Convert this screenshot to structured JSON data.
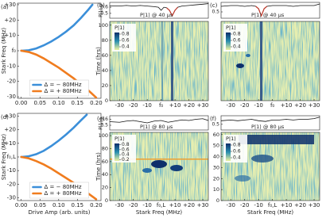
{
  "chart_data": [
    {
      "type": "line",
      "label": "(a)",
      "ylabel": "Stark Freq (MHz)",
      "xlim": [
        -0.01,
        0.213
      ],
      "xticks": [
        {
          "value": 0,
          "label": "0.00"
        },
        {
          "value": 0.05,
          "label": "0.05"
        },
        {
          "value": 0.1,
          "label": "0.10"
        },
        {
          "value": 0.15,
          "label": "0.15"
        },
        {
          "value": 0.2,
          "label": "0.20"
        }
      ],
      "ylim": [
        -31,
        31
      ],
      "yticks": [
        -30,
        -20,
        -10,
        {
          "value": 0,
          "label": "f₀"
        },
        {
          "value": 10,
          "label": "+10"
        },
        {
          "value": 20,
          "label": "+20"
        },
        {
          "value": 30,
          "label": "+30"
        }
      ],
      "legend": "lower center",
      "series": [
        {
          "name": "Δ = − 80MHz",
          "color": "#3b8fd9",
          "x": [
            0,
            0.02,
            0.04,
            0.06,
            0.08,
            0.1,
            0.12,
            0.14,
            0.16,
            0.18,
            0.19
          ],
          "values": [
            0,
            0.3,
            1.5,
            3.5,
            6,
            9,
            12.5,
            16.5,
            21.5,
            27,
            30
          ]
        },
        {
          "name": "Δ = + 80MHz",
          "color": "#f07c1e",
          "x": [
            0,
            0.02,
            0.04,
            0.06,
            0.08,
            0.1,
            0.12,
            0.14,
            0.16,
            0.18,
            0.2
          ],
          "values": [
            0,
            -0.8,
            -2.5,
            -5,
            -8,
            -11,
            -14.5,
            -18,
            -22,
            -26,
            -30.5
          ]
        }
      ]
    },
    {
      "type": "heatmap",
      "label": "(b)",
      "trace": {
        "ylabel": "P|1⟩",
        "annotation": "P|1⟩ @ 40 μs",
        "ylim": [
          0.42,
          0.68
        ],
        "yticks": [
          0.5,
          0.6
        ],
        "x": [
          -37,
          -30,
          -25,
          -20,
          -15,
          -10,
          -5,
          -2,
          0,
          2,
          4,
          6,
          8,
          10,
          12,
          15,
          20,
          25,
          30,
          34
        ],
        "series": [
          {
            "color": "#111111",
            "values": [
              0.62,
              0.62,
              0.63,
              0.62,
              0.63,
              0.62,
              0.61,
              0.6,
              0.55,
              0.6,
              0.59,
              0.55,
              0.46,
              0.55,
              0.6,
              0.62,
              0.63,
              0.64,
              0.65,
              0.66
            ]
          },
          {
            "color": "#c0392b",
            "values": [
              null,
              null,
              null,
              null,
              null,
              null,
              null,
              null,
              null,
              null,
              0.59,
              0.55,
              0.46,
              0.55,
              0.6,
              null,
              null,
              null,
              null,
              null
            ]
          }
        ]
      },
      "xlim": [
        -37,
        34
      ],
      "xticks": [
        -30,
        -20,
        -10,
        {
          "value": 0,
          "label": "f₀"
        },
        {
          "value": 10,
          "label": "+10"
        },
        {
          "value": 20,
          "label": "+20"
        },
        {
          "value": 30,
          "label": "+30"
        }
      ],
      "ylabel": "Time (hrs)",
      "ylim": [
        0,
        105
      ],
      "yticks": [
        0,
        20,
        40,
        60,
        80,
        100
      ],
      "colorbar": {
        "label": "P|1⟩",
        "clim": [
          0.3,
          0.85
        ],
        "ticks": [
          0.4,
          0.6,
          0.8
        ]
      }
    },
    {
      "type": "heatmap",
      "label": "(c)",
      "trace": {
        "annotation": "P|1⟩ @ 40 μs",
        "ylim": [
          0.42,
          0.62
        ],
        "yticks": [
          0.5
        ],
        "x": [
          -37,
          -30,
          -25,
          -20,
          -15,
          -12,
          -10,
          -8,
          -6,
          -4,
          0,
          5,
          10,
          15,
          20,
          25,
          30,
          34
        ],
        "series": [
          {
            "color": "#111111",
            "values": [
              0.57,
              0.58,
              0.58,
              0.57,
              0.58,
              0.57,
              0.54,
              0.45,
              0.54,
              0.57,
              0.58,
              0.58,
              0.58,
              0.57,
              0.58,
              0.58,
              0.58,
              0.6
            ]
          },
          {
            "color": "#c0392b",
            "values": [
              null,
              null,
              null,
              null,
              null,
              0.57,
              0.54,
              0.45,
              0.54,
              0.57,
              null,
              null,
              null,
              null,
              null,
              null,
              null,
              null
            ]
          }
        ]
      },
      "xlim": [
        -37,
        34
      ],
      "xticks": [
        -30,
        -20,
        -10,
        {
          "value": 0,
          "label": "f₀"
        },
        {
          "value": 10,
          "label": "+10"
        },
        {
          "value": 20,
          "label": "+20"
        },
        {
          "value": 30,
          "label": "+30"
        }
      ],
      "colorbar": {
        "label": "P|1⟩",
        "clim": [
          0.3,
          0.85
        ],
        "ticks": [
          0.4,
          0.6,
          0.8
        ]
      }
    },
    {
      "type": "line",
      "label": "(d)",
      "ylabel": "Stark Freq (MHz)",
      "xlabel": "Drive Amp (arb. units)",
      "xlim": [
        -0.01,
        0.213
      ],
      "xticks": [
        {
          "value": 0,
          "label": "0.00"
        },
        {
          "value": 0.05,
          "label": "0.05"
        },
        {
          "value": 0.1,
          "label": "0.10"
        },
        {
          "value": 0.15,
          "label": "0.15"
        },
        {
          "value": 0.2,
          "label": "0.20"
        }
      ],
      "ylim": [
        -32,
        32
      ],
      "yticks": [
        -30,
        -20,
        -10,
        {
          "value": 0,
          "label": "f₀,L"
        },
        {
          "value": 10,
          "label": "+10"
        },
        {
          "value": 20,
          "label": "+20"
        },
        {
          "value": 30,
          "label": "+30"
        }
      ],
      "legend": "lower center",
      "series": [
        {
          "name": "Δ = − 80MHz",
          "color": "#3b8fd9",
          "x": [
            0,
            0.02,
            0.04,
            0.06,
            0.08,
            0.1,
            0.12,
            0.14,
            0.16,
            0.175
          ],
          "values": [
            0,
            0.5,
            2,
            4.5,
            8,
            12,
            16.5,
            21.5,
            27,
            31
          ]
        },
        {
          "name": "Δ = + 80MHz",
          "color": "#f07c1e",
          "x": [
            0,
            0.02,
            0.04,
            0.06,
            0.08,
            0.1,
            0.12,
            0.14,
            0.16,
            0.18,
            0.2
          ],
          "values": [
            0,
            -1,
            -3,
            -5.5,
            -8.5,
            -12,
            -15.5,
            -19,
            -23,
            -27,
            -31
          ]
        }
      ]
    },
    {
      "type": "heatmap",
      "label": "(e)",
      "xlabel": "Stark Freq (MHz)",
      "trace": {
        "ylabel": "P|1⟩",
        "annotation": "P|1⟩ @ 80 μs",
        "ylim": [
          0.42,
          0.66
        ],
        "yticks": [
          0.5,
          0.6
        ],
        "x": [
          -37,
          -30,
          -25,
          -20,
          -15,
          -10,
          -5,
          0,
          5,
          10,
          15,
          20,
          25,
          30,
          34
        ],
        "series": [
          {
            "color": "#111111",
            "values": [
              0.56,
              0.55,
              0.57,
              0.58,
              0.56,
              0.54,
              0.57,
              0.58,
              0.55,
              0.57,
              0.59,
              0.58,
              0.6,
              0.61,
              0.58
            ]
          }
        ]
      },
      "xlim": [
        -37,
        34
      ],
      "xticks": [
        -30,
        -20,
        -10,
        {
          "value": 0,
          "label": "f₀,L"
        },
        {
          "value": 10,
          "label": "+10"
        },
        {
          "value": 20,
          "label": "+20"
        },
        {
          "value": 30,
          "label": "+30"
        }
      ],
      "ylabel": "Time (hrs)",
      "ylim": [
        0,
        105
      ],
      "yticks": [
        0,
        20,
        40,
        60,
        80,
        100
      ],
      "colorbar": {
        "label": "P|1⟩",
        "clim": [
          0.15,
          0.85
        ],
        "ticks": [
          0.2,
          0.4,
          0.6,
          0.8
        ]
      }
    },
    {
      "type": "heatmap",
      "label": "(f)",
      "xlabel": "Stark Freq (MHz)",
      "trace": {
        "annotation": "P|1⟩ @ 80 μs",
        "ylim": [
          0.42,
          0.62
        ],
        "yticks": [
          0.5
        ],
        "x": [
          -37,
          -30,
          -25,
          -20,
          -15,
          -10,
          -5,
          0,
          5,
          10,
          15,
          20,
          25,
          30,
          34
        ],
        "series": [
          {
            "color": "#111111",
            "values": [
              0.55,
              0.56,
              0.55,
              0.56,
              0.57,
              0.55,
              0.54,
              0.56,
              0.56,
              0.57,
              0.56,
              0.57,
              0.57,
              0.58,
              0.6
            ]
          }
        ]
      },
      "xlim": [
        -37,
        34
      ],
      "xticks": [
        -30,
        -20,
        -10,
        {
          "value": 0,
          "label": "f₀,L"
        },
        {
          "value": 10,
          "label": "+10"
        },
        {
          "value": 20,
          "label": "+20"
        },
        {
          "value": 30,
          "label": "+30"
        }
      ],
      "ylim": [
        0,
        62
      ],
      "yticks": [
        0,
        10,
        20,
        30,
        40,
        50,
        60
      ],
      "colorbar": {
        "label": "P|1⟩",
        "clim": [
          0.3,
          0.85
        ],
        "ticks": [
          0.4,
          0.6,
          0.8
        ]
      }
    }
  ]
}
